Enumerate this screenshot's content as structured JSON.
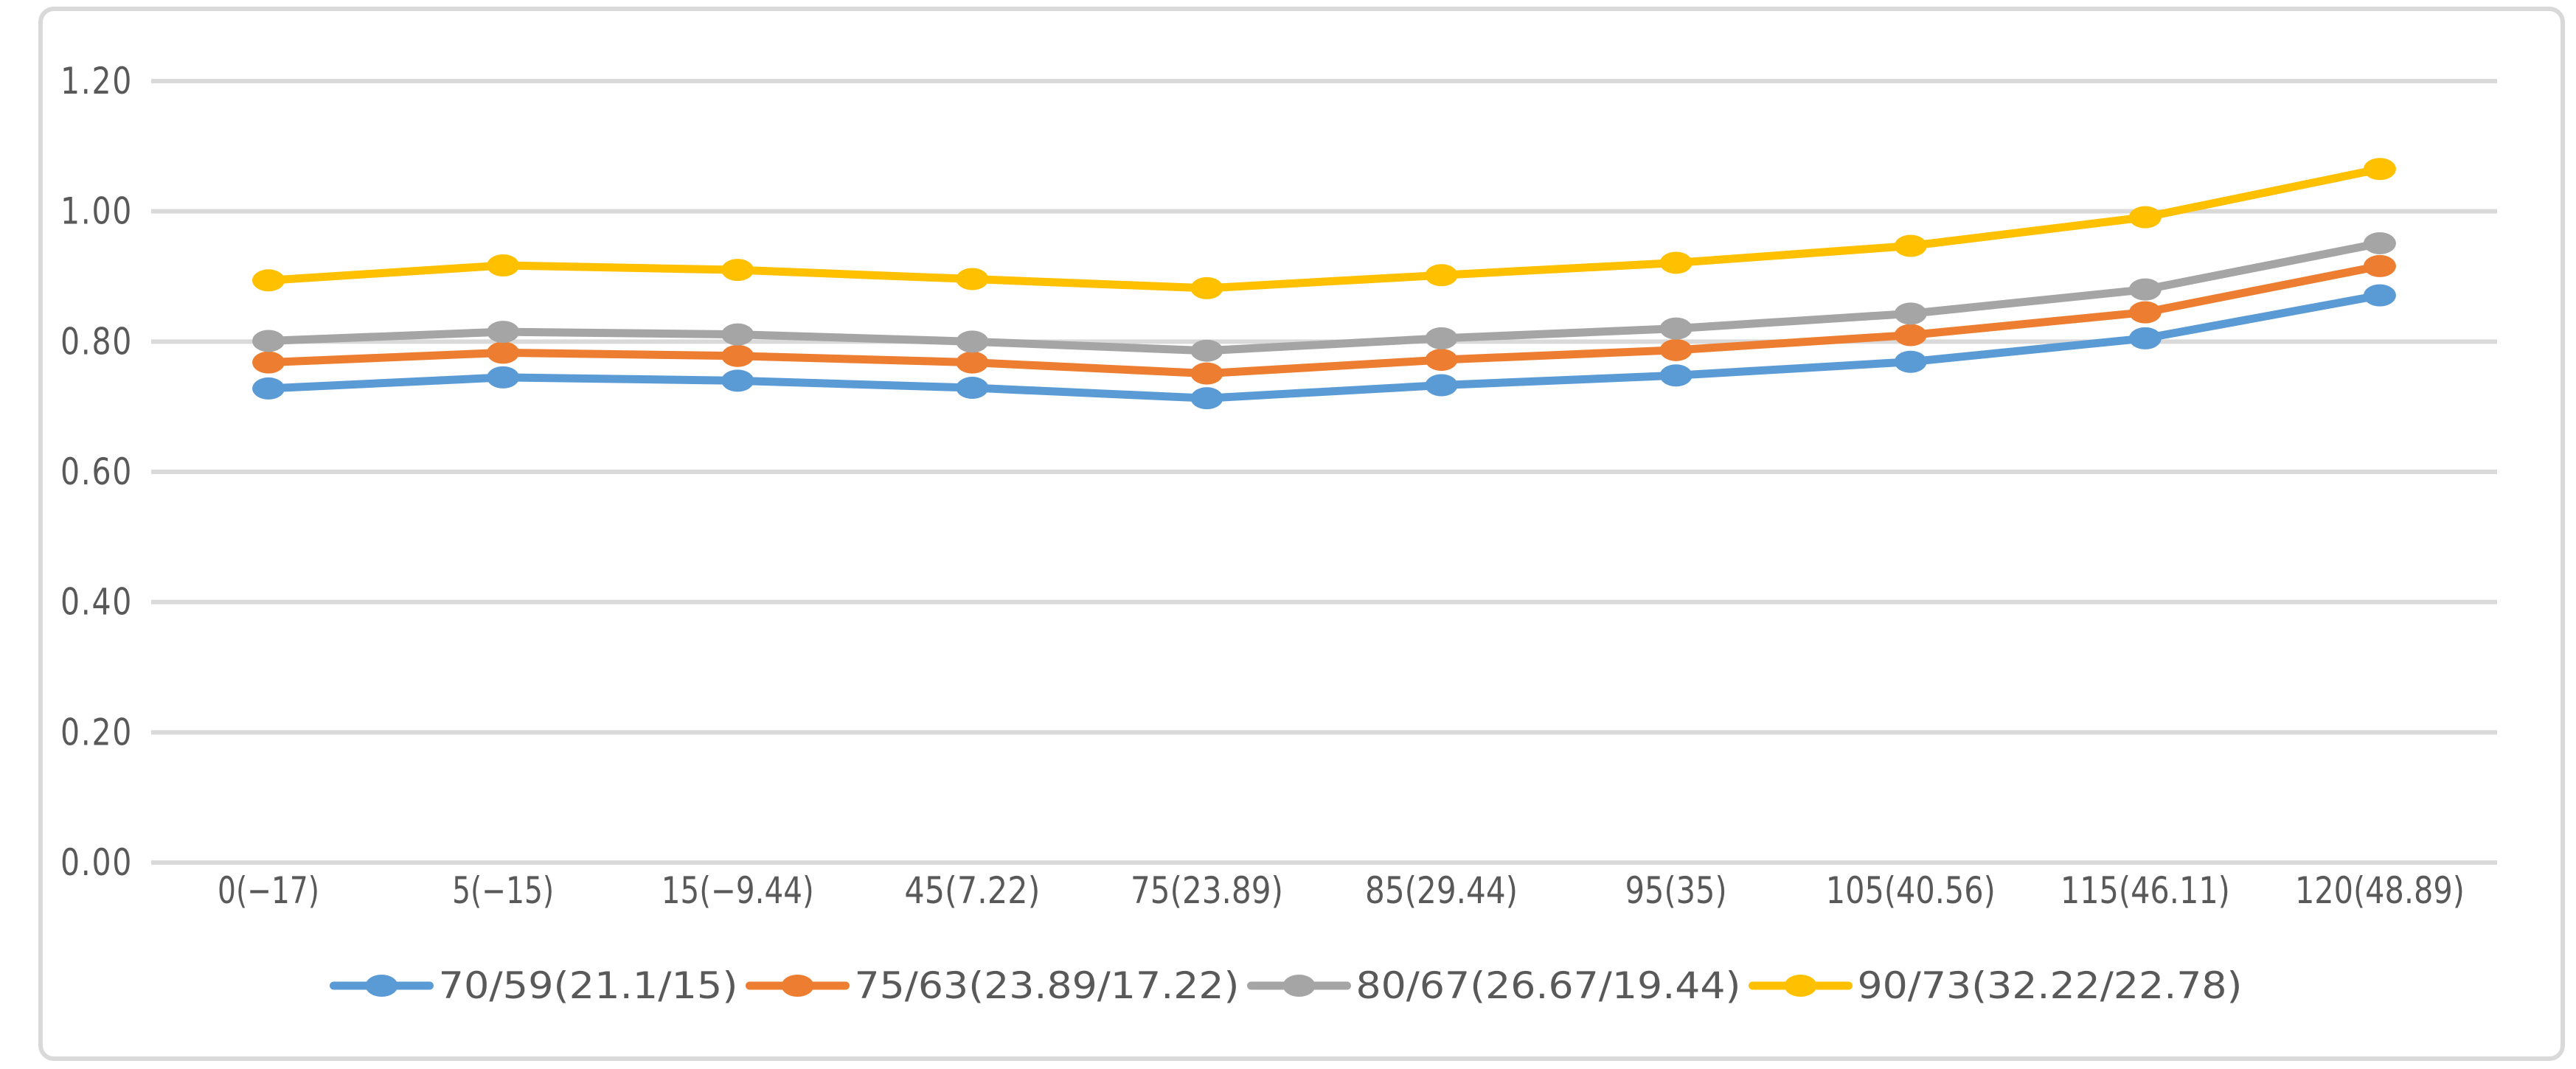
{
  "chart_data": {
    "type": "line",
    "title": "",
    "categories": [
      "0(−17)",
      "5(−15)",
      "15(−9.44)",
      "45(7.22)",
      "75(23.89)",
      "85(29.44)",
      "95(35)",
      "105(40.56)",
      "115(46.11)",
      "120(48.89)"
    ],
    "series": [
      {
        "name": "70/59(21.1/15)",
        "color": "#5B9BD5",
        "values": [
          0.728,
          0.745,
          0.74,
          0.729,
          0.713,
          0.733,
          0.748,
          0.769,
          0.805,
          0.871
        ]
      },
      {
        "name": "75/63(23.89/17.22)",
        "color": "#ED7D31",
        "values": [
          0.768,
          0.783,
          0.778,
          0.768,
          0.751,
          0.772,
          0.787,
          0.81,
          0.845,
          0.916
        ]
      },
      {
        "name": "80/67(26.67/19.44)",
        "color": "#A5A5A5",
        "values": [
          0.801,
          0.815,
          0.811,
          0.8,
          0.786,
          0.805,
          0.82,
          0.843,
          0.88,
          0.951
        ]
      },
      {
        "name": "90/73(32.22/22.78)",
        "color": "#FFC000",
        "values": [
          0.894,
          0.917,
          0.91,
          0.896,
          0.882,
          0.902,
          0.921,
          0.947,
          0.991,
          1.065
        ]
      }
    ],
    "xlabel": "",
    "ylabel": "",
    "y_axis": {
      "min": 0.0,
      "max": 1.2,
      "step": 0.2,
      "tick_labels": [
        "0.00",
        "0.20",
        "0.40",
        "0.60",
        "0.80",
        "1.00",
        "1.20"
      ]
    },
    "grid": true,
    "legend_position": "bottom",
    "marker_shape": "circle",
    "colors": {
      "gridline": "#D9D9D9",
      "chart_border": "#D9D9D9",
      "axis_text": "#595959",
      "background": "#FFFFFF"
    }
  }
}
